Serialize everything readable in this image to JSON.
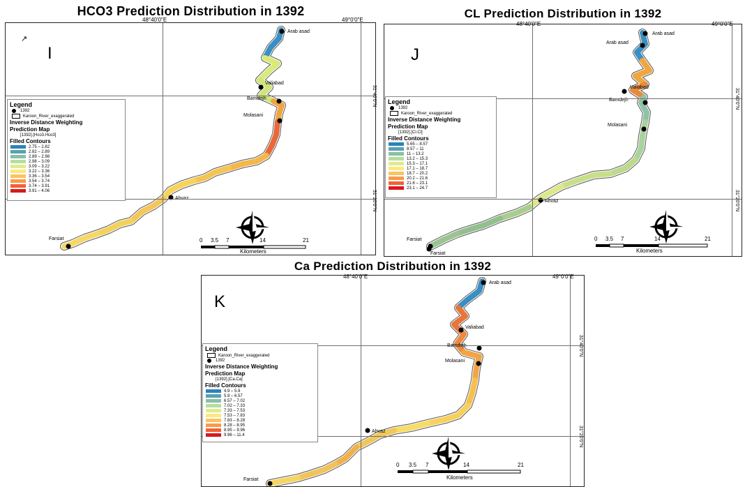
{
  "panels": [
    {
      "id": "I",
      "title": "HCO3 Prediction Distribution in 1392",
      "letter": "I",
      "coord_top_left": "48°40'0\"E",
      "coord_top_right": "49°0'0\"E",
      "coord_right_1": "31°40'0\"N",
      "coord_right_2": "31°20'0\"N",
      "legend": {
        "title": "Legend",
        "items": [
          {
            "symbol": "dot",
            "label": "1392"
          },
          {
            "symbol": "box",
            "label": "Karoon_River_exaggerated"
          }
        ],
        "method_line1": "Inverse Distance Weighting",
        "method_line2": "Prediction Map",
        "field": "[1392].[Hco3.Hco3]",
        "contours_title": "Filled Contours",
        "contours": [
          {
            "range": "2.75 – 2.82",
            "color": "#2b83ba"
          },
          {
            "range": "2.82 – 2.89",
            "color": "#5aa1b1"
          },
          {
            "range": "2.89 – 2.98",
            "color": "#89bfa7"
          },
          {
            "range": "2.98 – 3.09",
            "color": "#b7dd9e"
          },
          {
            "range": "3.09 – 3.22",
            "color": "#e0ec8c"
          },
          {
            "range": "3.22 – 3.36",
            "color": "#fee77e"
          },
          {
            "range": "3.36 – 3.54",
            "color": "#fdc262"
          },
          {
            "range": "3.54 – 3.74",
            "color": "#f99a47"
          },
          {
            "range": "3.74 – 3.91",
            "color": "#ef6235"
          },
          {
            "range": "3.91 – 4.06",
            "color": "#d7191c"
          }
        ]
      },
      "places": [
        "Arab asad",
        "Valiabad",
        "Bamdejh",
        "Molasani",
        "Ahvaz",
        "Farsiat"
      ],
      "scale": {
        "ticks": [
          "0",
          "3.5",
          "7",
          "14",
          "21"
        ],
        "unit": "Kilometers"
      }
    },
    {
      "id": "J",
      "title": "CL Prediction Distribution in 1392",
      "letter": "J",
      "coord_top_left": "48°40'0\"E",
      "coord_top_right": "49°0'0\"E",
      "coord_right_1": "31°40'0\"N",
      "coord_right_2": "31°20'0\"N",
      "legend": {
        "title": "Legend",
        "items": [
          {
            "symbol": "dot",
            "label": "1392"
          },
          {
            "symbol": "box",
            "label": "Karoon_River_exaggerated"
          }
        ],
        "method_line1": "Inverse Distance Weighting",
        "method_line2": "Prediction Map",
        "field": "[1392].[Cl.Cl]",
        "contours_title": "Filled Contours",
        "contours": [
          {
            "range": "5.65 – 8.57",
            "color": "#2b83ba"
          },
          {
            "range": "8.57 – 11",
            "color": "#5aa1b1"
          },
          {
            "range": "11 – 13.2",
            "color": "#89bfa7"
          },
          {
            "range": "13.2 – 15.3",
            "color": "#b7dd9e"
          },
          {
            "range": "15.3 – 17.1",
            "color": "#e0ec8c"
          },
          {
            "range": "17.1 – 18.7",
            "color": "#fee77e"
          },
          {
            "range": "18.7 – 20.2",
            "color": "#fdc262"
          },
          {
            "range": "20.2 – 21.6",
            "color": "#f99a47"
          },
          {
            "range": "21.6 – 23.1",
            "color": "#ef6235"
          },
          {
            "range": "23.1 – 24.7",
            "color": "#d7191c"
          }
        ]
      },
      "places": [
        "Arab asad",
        "Arab asad",
        "Valiabad",
        "Bamdejh",
        "Molasani",
        "Ahvaz",
        "Farsiat",
        "Farsiat"
      ],
      "scale": {
        "ticks": [
          "0",
          "3.5",
          "7",
          "14",
          "21"
        ],
        "unit": "Kilometers"
      }
    },
    {
      "id": "K",
      "title": "Ca Prediction Distribution in 1392",
      "letter": "K",
      "coord_top_left": "48°40'0\"E",
      "coord_top_right": "49°0'0\"E",
      "coord_right_1": "31°40'0\"N",
      "coord_right_2": "31°20'0\"N",
      "legend": {
        "title": "Legend",
        "items": [
          {
            "symbol": "box",
            "label": "Karoon_River_exaggerated"
          },
          {
            "symbol": "dot",
            "label": "1392"
          }
        ],
        "method_line1": "Inverse Distance Weighting",
        "method_line2": "Prediction Map",
        "field": "[1392].[Ca.Ca]",
        "contours_title": "Filled Contours",
        "contours": [
          {
            "range": "4.9 – 5.9",
            "color": "#2b83ba"
          },
          {
            "range": "5.9 – 6.57",
            "color": "#5aa1b1"
          },
          {
            "range": "6.57 – 7.02",
            "color": "#89bfa7"
          },
          {
            "range": "7.02 – 7.33",
            "color": "#b7dd9e"
          },
          {
            "range": "7.33 – 7.53",
            "color": "#e0ec8c"
          },
          {
            "range": "7.53 – 7.83",
            "color": "#fee77e"
          },
          {
            "range": "7.83 – 8.28",
            "color": "#fdc262"
          },
          {
            "range": "8.28 – 8.95",
            "color": "#f99a47"
          },
          {
            "range": "8.95 – 9.96",
            "color": "#ef6235"
          },
          {
            "range": "9.96 – 11.4",
            "color": "#d7191c"
          }
        ]
      },
      "places": [
        "Arab asad",
        "Valiabad",
        "Bamdejh",
        "Molasani",
        "Ahvaz",
        "Farsiat"
      ],
      "scale": {
        "ticks": [
          "0",
          "3.5",
          "7",
          "14",
          "21"
        ],
        "unit": "Kilometers"
      }
    }
  ],
  "river_colors": {
    "I": [
      "#3a8fc2",
      "#d9ea7a",
      "#cfe57a",
      "#f0a63f",
      "#e8683a",
      "#f5b64a",
      "#f6c452",
      "#f7d35c",
      "#f3c75a",
      "#f3d25c",
      "#f5d866"
    ],
    "J": [
      "#3a8fc2",
      "#f0a63f",
      "#e88a3d",
      "#8fc3a6",
      "#a9d29c",
      "#bcd98c",
      "#c8df8a",
      "#dde88a",
      "#a9cd8c",
      "#93bf8e",
      "#9cc492"
    ],
    "K": [
      "#3a8fc2",
      "#e8763a",
      "#ef8a3c",
      "#f3a545",
      "#f6bf4f",
      "#f8d05a",
      "#f7dc65",
      "#f2c75a",
      "#f0b14d",
      "#f2c35a",
      "#f5d566"
    ]
  }
}
